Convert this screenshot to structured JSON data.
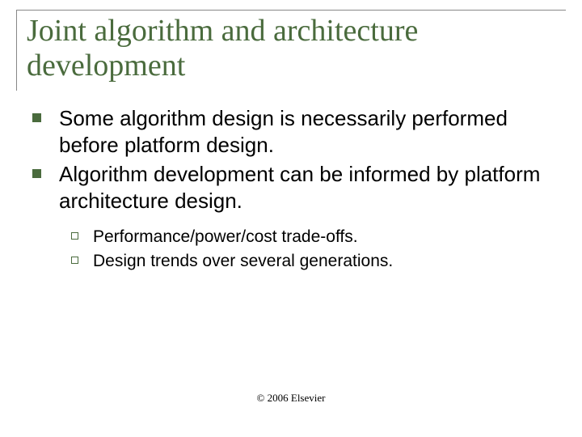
{
  "title": "Joint algorithm and architecture development",
  "colors": {
    "title_color": "#4a6b3d",
    "bullet_color": "#4a6b3d",
    "text_color": "#000000",
    "background": "#ffffff",
    "rule_color": "#888888"
  },
  "typography": {
    "title_font": "Times New Roman",
    "title_fontsize_pt": 29,
    "body_font": "Arial",
    "body_fontsize_pt": 20,
    "sub_fontsize_pt": 16,
    "footer_fontsize_pt": 10
  },
  "bullets": [
    {
      "text": "Some algorithm design is necessarily performed before platform design."
    },
    {
      "text": "Algorithm development can be informed by platform architecture design."
    }
  ],
  "sub_bullets": [
    {
      "text": "Performance/power/cost trade-offs."
    },
    {
      "text": "Design trends over several generations."
    }
  ],
  "footer": "© 2006 Elsevier"
}
